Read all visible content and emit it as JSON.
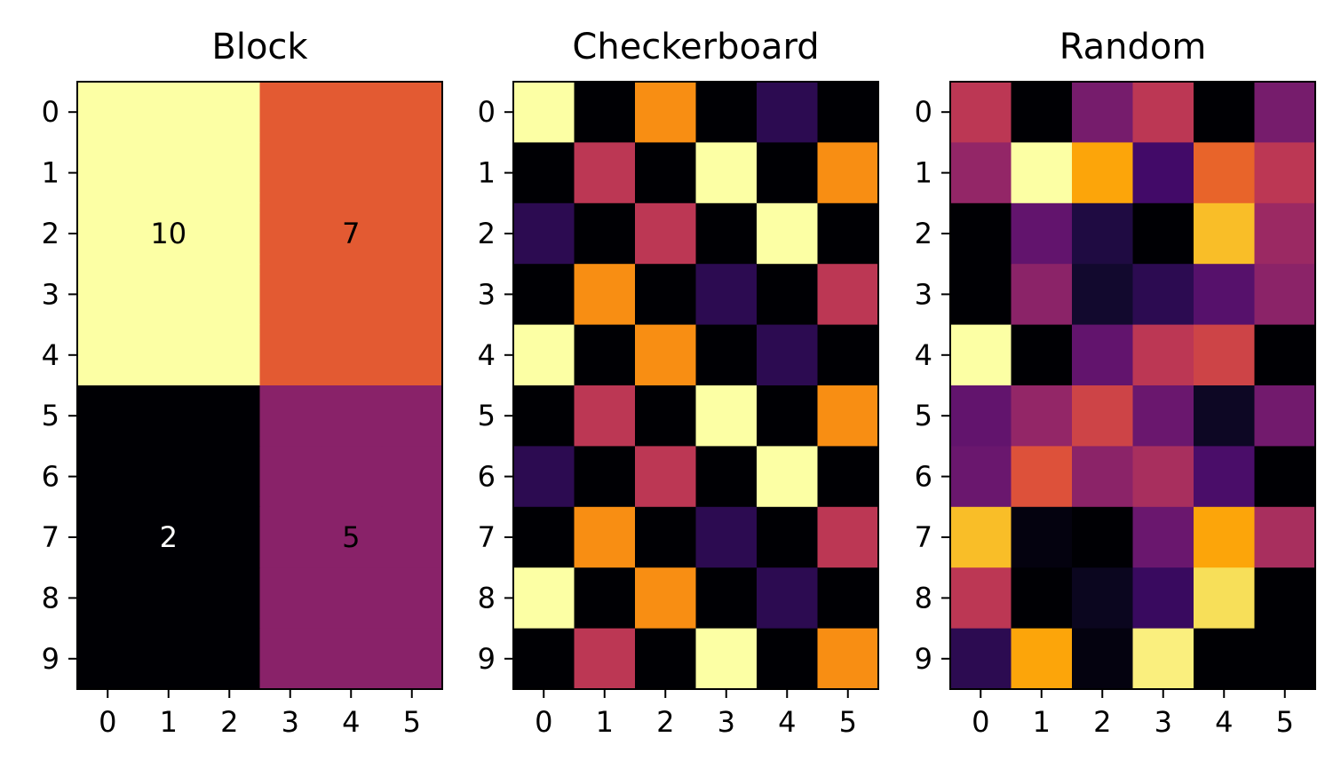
{
  "chart_data": [
    {
      "type": "heatmap",
      "title": "Block",
      "colormap": "inferno",
      "x_ticks": [
        0,
        1,
        2,
        3,
        4,
        5
      ],
      "y_ticks": [
        0,
        1,
        2,
        3,
        4,
        5,
        6,
        7,
        8,
        9
      ],
      "vmin": 2,
      "vmax": 10,
      "values": [
        [
          10,
          10,
          10,
          7,
          7,
          7
        ],
        [
          10,
          10,
          10,
          7,
          7,
          7
        ],
        [
          10,
          10,
          10,
          7,
          7,
          7
        ],
        [
          10,
          10,
          10,
          7,
          7,
          7
        ],
        [
          10,
          10,
          10,
          7,
          7,
          7
        ],
        [
          2,
          2,
          2,
          5,
          5,
          5
        ],
        [
          2,
          2,
          2,
          5,
          5,
          5
        ],
        [
          2,
          2,
          2,
          5,
          5,
          5
        ],
        [
          2,
          2,
          2,
          5,
          5,
          5
        ],
        [
          2,
          2,
          2,
          5,
          5,
          5
        ]
      ],
      "annotations": [
        {
          "row": 2,
          "col": 1,
          "text": "10",
          "color": "#000000"
        },
        {
          "row": 2,
          "col": 4,
          "text": "7",
          "color": "#000000"
        },
        {
          "row": 7,
          "col": 1,
          "text": "2",
          "color": "#ffffff"
        },
        {
          "row": 7,
          "col": 4,
          "text": "5",
          "color": "#000000"
        }
      ]
    },
    {
      "type": "heatmap",
      "title": "Checkerboard",
      "colormap": "inferno",
      "x_ticks": [
        0,
        1,
        2,
        3,
        4,
        5
      ],
      "y_ticks": [
        0,
        1,
        2,
        3,
        4,
        5,
        6,
        7,
        8,
        9
      ],
      "vmin": 0,
      "vmax": 1,
      "values": [
        [
          1.0,
          0,
          0.75,
          0,
          0.15,
          0
        ],
        [
          0,
          0.5,
          0,
          1.0,
          0,
          0.75
        ],
        [
          0.15,
          0,
          0.5,
          0,
          1.0,
          0
        ],
        [
          0,
          0.75,
          0,
          0.15,
          0,
          0.5
        ],
        [
          1.0,
          0,
          0.75,
          0,
          0.15,
          0
        ],
        [
          0,
          0.5,
          0,
          1.0,
          0,
          0.75
        ],
        [
          0.15,
          0,
          0.5,
          0,
          1.0,
          0
        ],
        [
          0,
          0.75,
          0,
          0.15,
          0,
          0.5
        ],
        [
          1.0,
          0,
          0.75,
          0,
          0.15,
          0
        ],
        [
          0,
          0.5,
          0,
          1.0,
          0,
          0.75
        ]
      ]
    },
    {
      "type": "heatmap",
      "title": "Random",
      "colormap": "inferno",
      "x_ticks": [
        0,
        1,
        2,
        3,
        4,
        5
      ],
      "y_ticks": [
        0,
        1,
        2,
        3,
        4,
        5,
        6,
        7,
        8,
        9
      ],
      "vmin": 0,
      "vmax": 1,
      "values": [
        [
          0.5,
          0.0,
          0.33,
          0.5,
          0.0,
          0.33
        ],
        [
          0.4,
          1.0,
          0.8,
          0.2,
          0.65,
          0.5
        ],
        [
          0.0,
          0.28,
          0.12,
          0.0,
          0.85,
          0.42
        ],
        [
          0.0,
          0.38,
          0.08,
          0.15,
          0.25,
          0.38
        ],
        [
          1.0,
          0.0,
          0.28,
          0.5,
          0.55,
          0.0
        ],
        [
          0.28,
          0.4,
          0.55,
          0.3,
          0.06,
          0.32
        ],
        [
          0.3,
          0.6,
          0.38,
          0.45,
          0.22,
          0.0
        ],
        [
          0.85,
          0.02,
          0.0,
          0.3,
          0.8,
          0.45
        ],
        [
          0.5,
          0.0,
          0.05,
          0.18,
          0.92,
          0.0
        ],
        [
          0.15,
          0.8,
          0.02,
          0.96,
          0.0,
          0.0
        ]
      ]
    }
  ]
}
